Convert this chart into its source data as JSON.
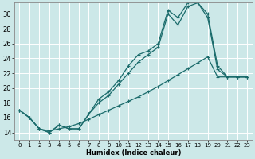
{
  "xlabel": "Humidex (Indice chaleur)",
  "bg_color": "#cce8e8",
  "grid_color": "#ffffff",
  "line_color": "#1a6b6b",
  "xlim": [
    -0.5,
    23.5
  ],
  "ylim": [
    13.0,
    31.5
  ],
  "xticks": [
    0,
    1,
    2,
    3,
    4,
    5,
    6,
    7,
    8,
    9,
    10,
    11,
    12,
    13,
    14,
    15,
    16,
    17,
    18,
    19,
    20,
    21,
    22,
    23
  ],
  "yticks": [
    14,
    16,
    18,
    20,
    22,
    24,
    26,
    28,
    30
  ],
  "series1_x": [
    0,
    1,
    2,
    3,
    4,
    5,
    6,
    7,
    8,
    9,
    10,
    11,
    12,
    13,
    14,
    15,
    16,
    17,
    18,
    19,
    20,
    21,
    22,
    23
  ],
  "series1_y": [
    17.0,
    16.0,
    14.5,
    14.0,
    15.0,
    14.5,
    14.5,
    16.5,
    18.5,
    19.5,
    21.0,
    23.0,
    24.5,
    25.0,
    26.0,
    30.5,
    29.5,
    31.5,
    31.5,
    30.0,
    23.0,
    21.5,
    21.5,
    21.5
  ],
  "series2_x": [
    0,
    1,
    2,
    3,
    4,
    5,
    6,
    7,
    8,
    9,
    10,
    11,
    12,
    13,
    14,
    15,
    16,
    17,
    18,
    19,
    20,
    21,
    22,
    23
  ],
  "series2_y": [
    17.0,
    16.0,
    14.5,
    14.0,
    15.0,
    14.5,
    14.5,
    16.5,
    18.0,
    19.0,
    20.5,
    22.0,
    23.5,
    24.5,
    25.5,
    30.0,
    28.5,
    31.0,
    31.5,
    29.5,
    22.5,
    21.5,
    21.5,
    21.5
  ],
  "series3_x": [
    0,
    1,
    2,
    3,
    4,
    5,
    6,
    7,
    8,
    9,
    10,
    11,
    12,
    13,
    14,
    15,
    16,
    17,
    18,
    19,
    20,
    21,
    22,
    23
  ],
  "series3_y": [
    17.0,
    16.0,
    14.5,
    14.2,
    14.5,
    14.8,
    15.2,
    15.8,
    16.4,
    17.0,
    17.6,
    18.2,
    18.8,
    19.5,
    20.2,
    21.0,
    21.8,
    22.6,
    23.4,
    24.2,
    21.5,
    21.5,
    21.5,
    21.5
  ]
}
